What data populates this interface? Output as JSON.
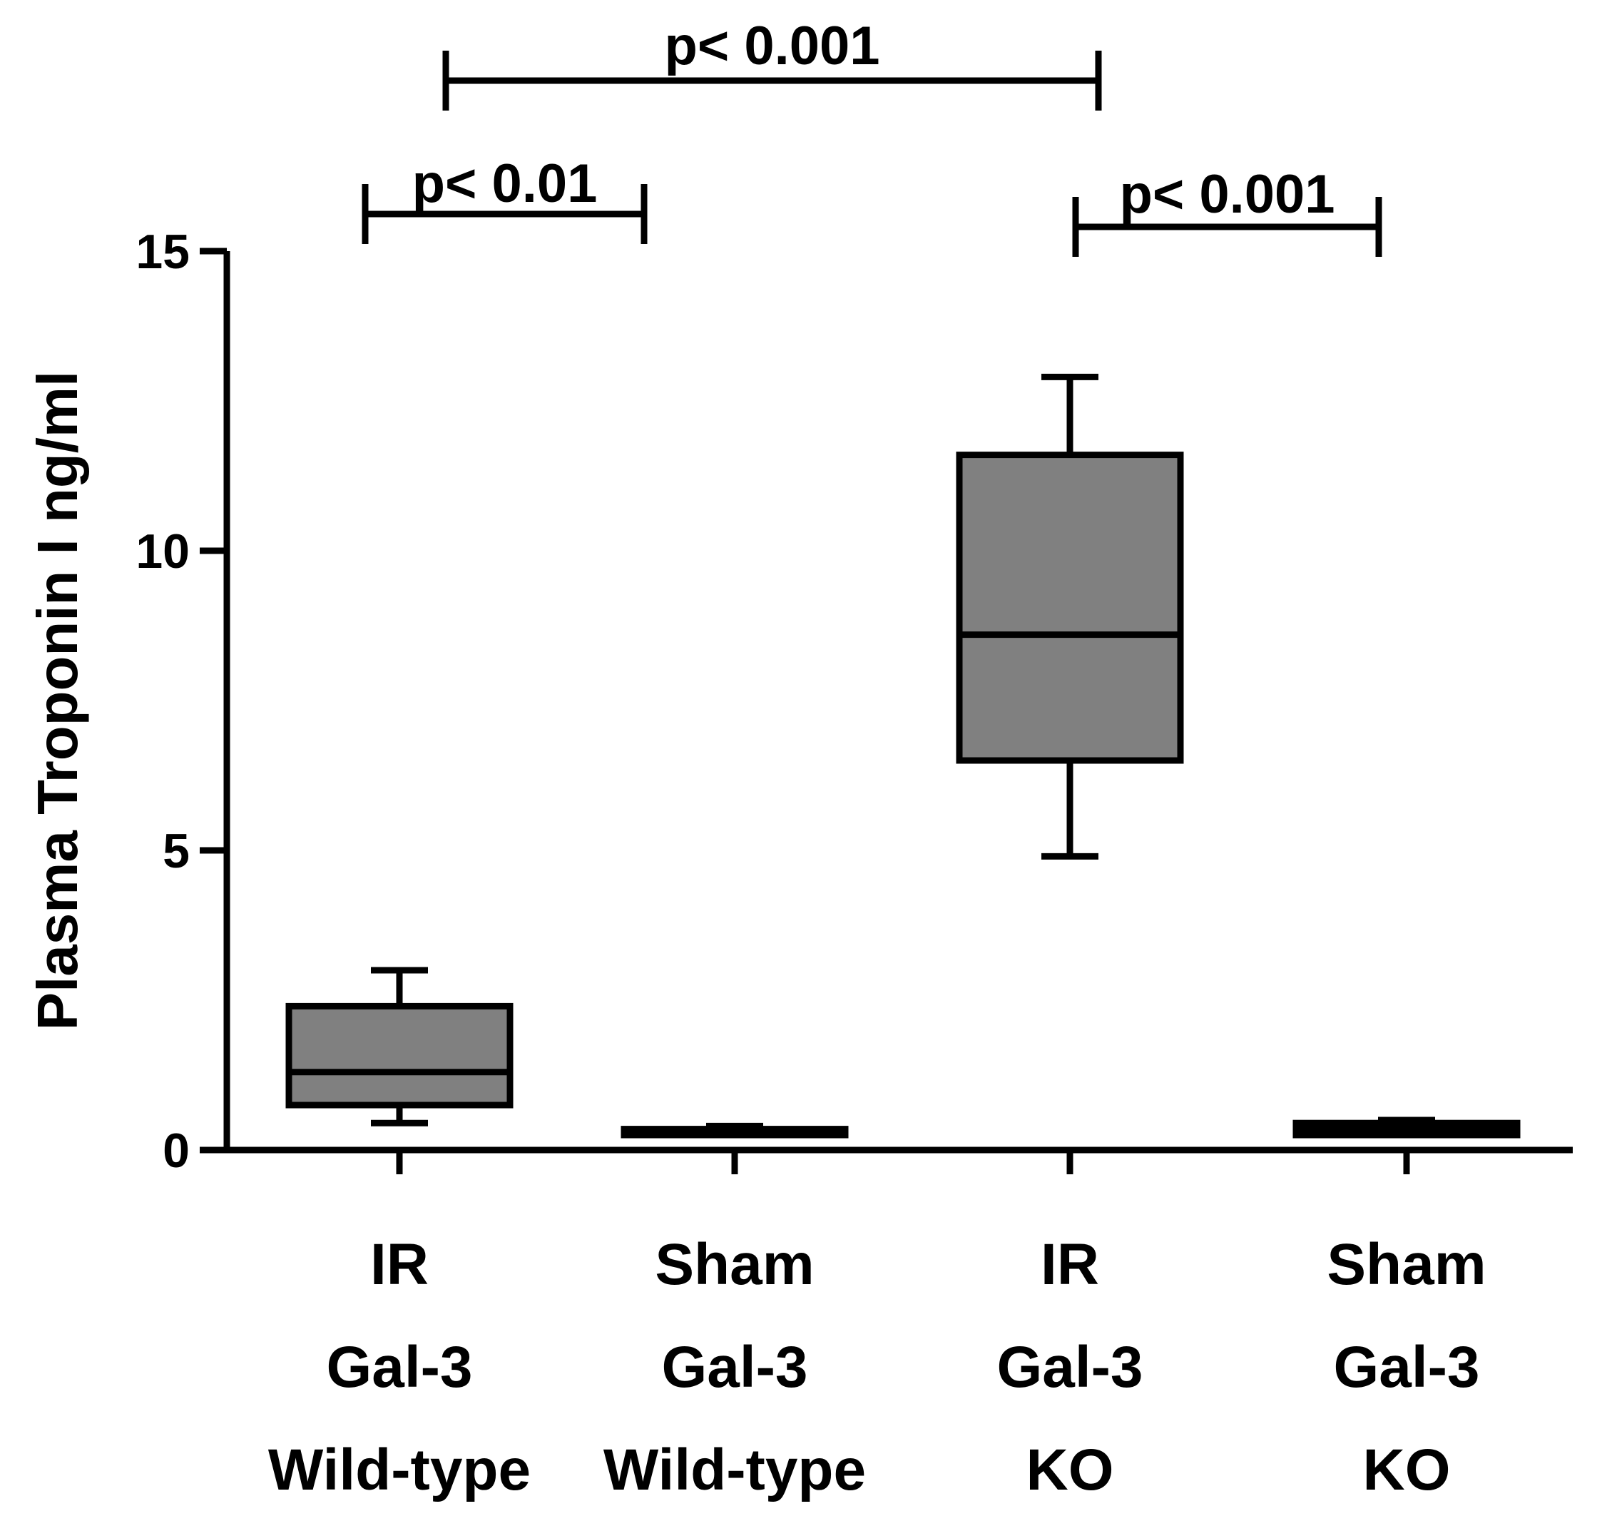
{
  "chart_data": {
    "type": "boxplot",
    "title": "",
    "ylabel": "Plasma Troponin I ng/ml",
    "xlabel": "",
    "ylim": [
      0,
      15
    ],
    "yticks": [
      0,
      5,
      10,
      15
    ],
    "box_color": "#808080",
    "groups": [
      {
        "label_lines": [
          "IR",
          "Gal-3",
          "Wild-type"
        ],
        "min": 0.45,
        "q1": 0.75,
        "median": 1.3,
        "q3": 2.4,
        "max": 3.0
      },
      {
        "label_lines": [
          "Sham",
          "Gal-3",
          "Wild-type"
        ],
        "min": 0.25,
        "q1": 0.25,
        "median": 0.3,
        "q3": 0.35,
        "max": 0.4
      },
      {
        "label_lines": [
          "IR",
          "Gal-3",
          "KO"
        ],
        "min": 4.9,
        "q1": 6.5,
        "median": 8.6,
        "q3": 11.6,
        "max": 12.9
      },
      {
        "label_lines": [
          "Sham",
          "Gal-3",
          "KO"
        ],
        "min": 0.25,
        "q1": 0.25,
        "median": 0.35,
        "q3": 0.45,
        "max": 0.5
      }
    ],
    "significance": [
      {
        "from": 0,
        "to": 1,
        "label": "p< 0.01"
      },
      {
        "from": 0,
        "to": 2,
        "label": "p< 0.001"
      },
      {
        "from": 2,
        "to": 3,
        "label": "p< 0.001"
      }
    ]
  }
}
